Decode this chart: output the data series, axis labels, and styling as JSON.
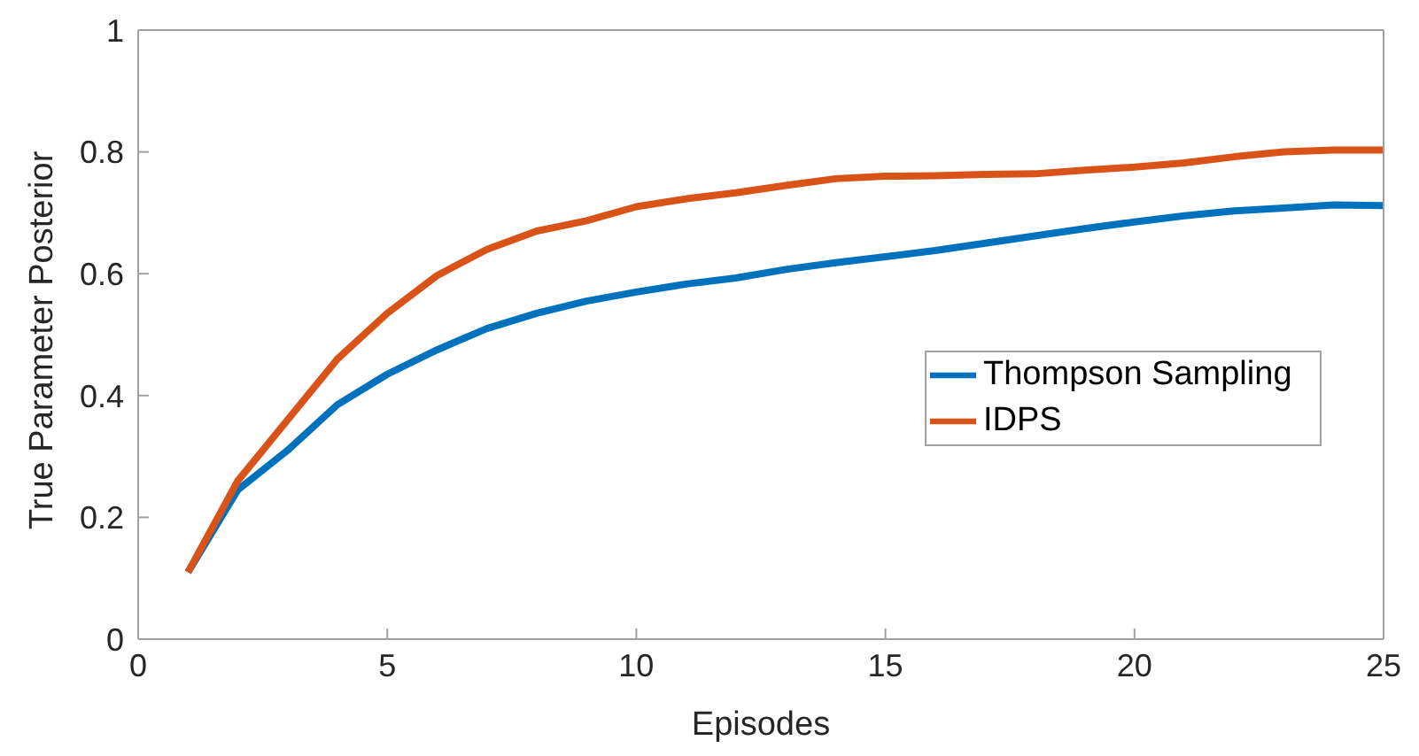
{
  "chart_data": {
    "type": "line",
    "xlabel": "Episodes",
    "ylabel": "True Parameter Posterior",
    "x": [
      1,
      2,
      3,
      4,
      5,
      6,
      7,
      8,
      9,
      10,
      11,
      12,
      13,
      14,
      15,
      16,
      17,
      18,
      19,
      20,
      21,
      22,
      23,
      24,
      25
    ],
    "series": [
      {
        "name": "Thompson Sampling",
        "color": "#0072bd",
        "values": [
          0.11,
          0.245,
          0.31,
          0.385,
          0.435,
          0.475,
          0.51,
          0.535,
          0.555,
          0.57,
          0.583,
          0.593,
          0.607,
          0.618,
          0.628,
          0.638,
          0.65,
          0.662,
          0.674,
          0.685,
          0.695,
          0.703,
          0.708,
          0.713,
          0.712
        ]
      },
      {
        "name": "IDPS",
        "color": "#d95319",
        "values": [
          0.11,
          0.26,
          0.36,
          0.46,
          0.535,
          0.597,
          0.64,
          0.67,
          0.687,
          0.71,
          0.723,
          0.733,
          0.745,
          0.756,
          0.76,
          0.761,
          0.763,
          0.764,
          0.77,
          0.775,
          0.782,
          0.792,
          0.8,
          0.803,
          0.803
        ]
      }
    ],
    "xlim": [
      0,
      25
    ],
    "xticks": [
      0,
      5,
      10,
      15,
      20,
      25
    ],
    "ylim": [
      0,
      1
    ],
    "yticks": [
      0,
      0.2,
      0.4,
      0.6,
      0.8,
      1
    ],
    "grid": false,
    "legend": "right",
    "marker": "none",
    "line_style": "solid"
  }
}
